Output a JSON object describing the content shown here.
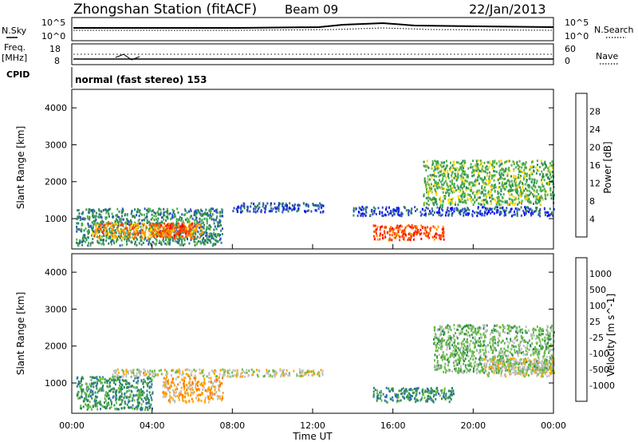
{
  "header": {
    "station": "Zhongshan Station (fitACF)",
    "beam": "Beam 09",
    "date": "22/Jan/2013"
  },
  "params": {
    "nsky_label": "N.Sky",
    "nsearch_label": "N.Search",
    "nsky_ticks": [
      "10^5",
      "10^0"
    ],
    "nsearch_ticks": [
      "10^5",
      "10^0"
    ],
    "freq_label": "Freq.",
    "freq_unit": "[MHz]",
    "freq_ticks": [
      "18",
      "8"
    ],
    "nave_label": "Nave",
    "nave_ticks": [
      "60",
      "0"
    ],
    "cpid_label": "CPID",
    "cpid_value": "normal (fast stereo) 153"
  },
  "x_axis": {
    "label": "Time UT",
    "ticks": [
      "00:00",
      "04:00",
      "08:00",
      "12:00",
      "16:00",
      "20:00",
      "00:00"
    ],
    "range_hours": [
      0,
      24
    ]
  },
  "power_panel": {
    "ylabel": "Slant Range [km]",
    "yticks": [
      1000,
      2000,
      3000,
      4000
    ],
    "ylim": [
      180,
      4500
    ],
    "colorbar_label": "Power [dB]",
    "colorbar_ticks": [
      "28",
      "24",
      "20",
      "16",
      "12",
      "8",
      "4"
    ],
    "colors": [
      "#0000ff",
      "#3050c0",
      "#2e8b57",
      "#4caf50",
      "#ffd700",
      "#ff9900",
      "#ff4500",
      "#ff0000"
    ]
  },
  "velocity_panel": {
    "ylabel": "Slant Range [km]",
    "yticks": [
      1000,
      2000,
      3000,
      4000
    ],
    "ylim": [
      180,
      4500
    ],
    "colorbar_label": "Velocity [m s^-1]",
    "colorbar_ticks": [
      "1000",
      "500",
      "100",
      "25",
      "-25",
      "-100",
      "-500",
      "-1000"
    ],
    "colors": [
      "#1a3fc8",
      "#2e6fb0",
      "#2e8b57",
      "#66bb44",
      "#c0c0c0",
      "#ffa500",
      "#ff7700",
      "#ff3300",
      "#ff0000"
    ]
  },
  "chart_data": [
    {
      "type": "heatmap",
      "title": "Power",
      "xlabel": "Time UT",
      "ylabel": "Slant Range [km]",
      "x_range": [
        0,
        24
      ],
      "ylim": [
        180,
        4500
      ],
      "colorbar": "Power [dB]",
      "regions": [
        {
          "t0": 0.2,
          "t1": 7.5,
          "r0": 300,
          "r1": 1300,
          "level": 2
        },
        {
          "t0": 1.0,
          "t1": 6.5,
          "r0": 500,
          "r1": 900,
          "level": 5
        },
        {
          "t0": 4.0,
          "t1": 6.0,
          "r0": 550,
          "r1": 900,
          "level": 6
        },
        {
          "t0": 8.0,
          "t1": 12.5,
          "r0": 1200,
          "r1": 1450,
          "level": 1
        },
        {
          "t0": 15.0,
          "t1": 18.5,
          "r0": 450,
          "r1": 850,
          "level": 6
        },
        {
          "t0": 17.5,
          "t1": 24.0,
          "r0": 1400,
          "r1": 2600,
          "level": 3
        },
        {
          "t0": 14.0,
          "t1": 24.0,
          "r0": 1100,
          "r1": 1350,
          "level": 1
        }
      ]
    },
    {
      "type": "heatmap",
      "title": "Velocity",
      "xlabel": "Time UT",
      "ylabel": "Slant Range [km]",
      "x_range": [
        0,
        24
      ],
      "ylim": [
        180,
        4500
      ],
      "colorbar": "Velocity [m s^-1]",
      "regions": [
        {
          "t0": 0.2,
          "t1": 4.0,
          "r0": 300,
          "r1": 1200,
          "level": 2
        },
        {
          "t0": 4.5,
          "t1": 7.5,
          "r0": 500,
          "r1": 1200,
          "level": 5
        },
        {
          "t0": 2.0,
          "t1": 12.5,
          "r0": 1200,
          "r1": 1400,
          "level": 4
        },
        {
          "t0": 15.0,
          "t1": 19.0,
          "r0": 500,
          "r1": 900,
          "level": 2
        },
        {
          "t0": 18.0,
          "t1": 24.0,
          "r0": 1300,
          "r1": 2600,
          "level": 3
        },
        {
          "t0": 20.5,
          "t1": 24.0,
          "r0": 1200,
          "r1": 1700,
          "level": 4
        }
      ]
    }
  ]
}
